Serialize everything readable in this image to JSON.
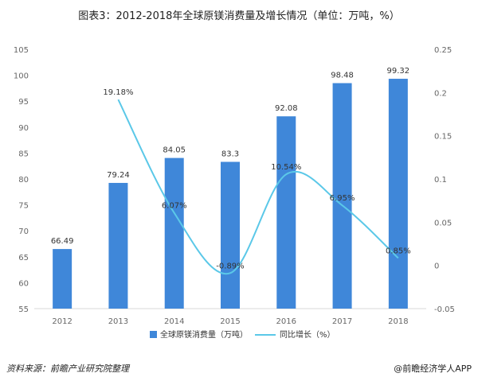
{
  "title": "图表3：2012-2018年全球原镁消费量及增长情况（单位：万吨，%）",
  "footer": {
    "source": "资料来源：前瞻产业研究院整理",
    "brand": "@前瞻经济学人APP"
  },
  "chart_data": {
    "type": "bar",
    "categories": [
      "2012",
      "2013",
      "2014",
      "2015",
      "2016",
      "2017",
      "2018"
    ],
    "series": [
      {
        "name": "全球原镁消费量（万吨）",
        "type": "bar",
        "axis": "left",
        "color": "#3f87d9",
        "values": [
          66.49,
          79.24,
          84.05,
          83.3,
          92.08,
          98.48,
          99.32
        ],
        "labels": [
          "66.49",
          "79.24",
          "84.05",
          "83.3",
          "92.08",
          "98.48",
          "99.32"
        ]
      },
      {
        "name": "同比增长（%）",
        "type": "line",
        "axis": "right",
        "color": "#5bc8e8",
        "values": [
          null,
          0.1918,
          0.0607,
          -0.0089,
          0.1054,
          0.0695,
          0.0085
        ],
        "labels": [
          "",
          "19.18%",
          "6.07%",
          "-0.89%",
          "10.54%",
          "6.95%",
          "0.85%"
        ]
      }
    ],
    "y_left": {
      "ylim": [
        55,
        105
      ],
      "ticks": [
        "55",
        "60",
        "65",
        "70",
        "75",
        "80",
        "85",
        "90",
        "95",
        "100",
        "105"
      ]
    },
    "y_right": {
      "ylim": [
        -0.05,
        0.25
      ],
      "ticks": [
        "-0.05",
        "0",
        "0.05",
        "0.1",
        "0.15",
        "0.2",
        "0.25"
      ]
    },
    "legend_position": "bottom",
    "grid": false
  }
}
